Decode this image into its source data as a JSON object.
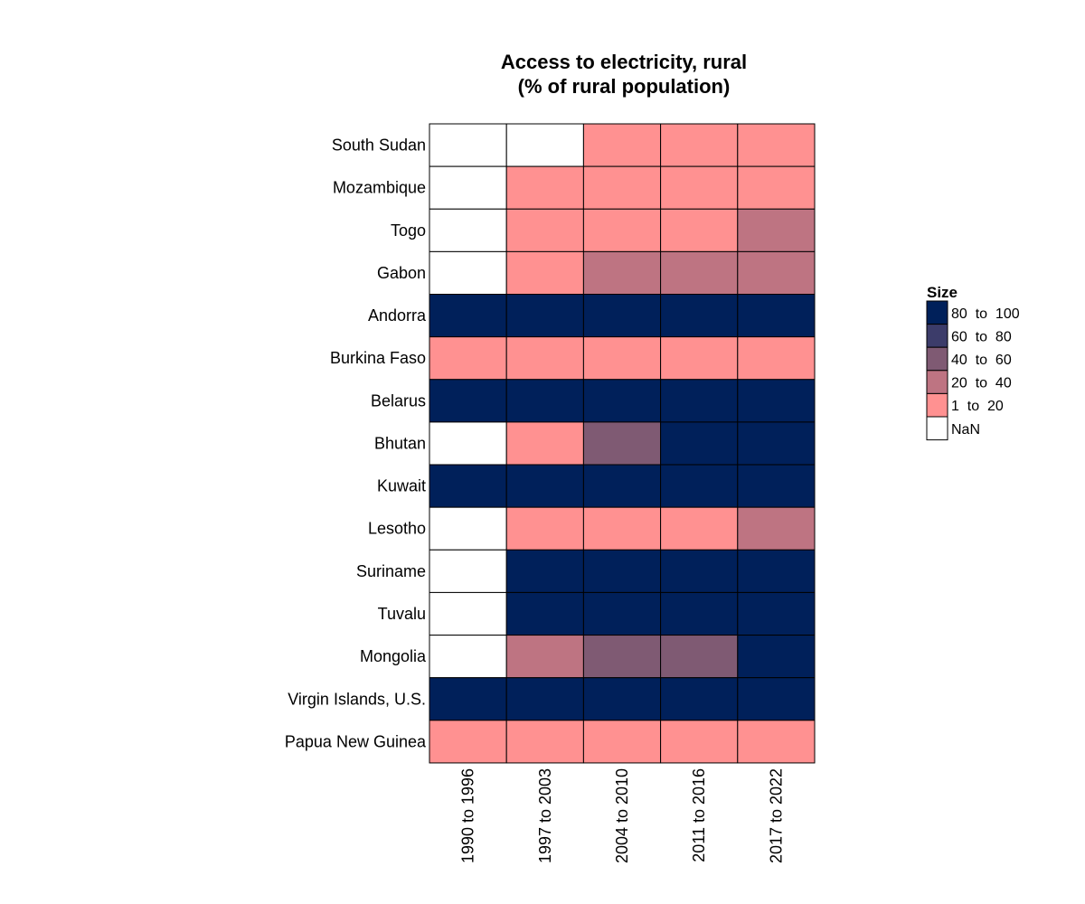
{
  "chart_data": {
    "type": "heatmap",
    "title_lines": [
      "Access to electricity, rural",
      "(% of rural population)"
    ],
    "columns": [
      "1990 to 1996",
      "1997 to 2003",
      "2004 to 2010",
      "2011 to 2016",
      "2017 to 2022"
    ],
    "rows": [
      "South Sudan",
      "Mozambique",
      "Togo",
      "Gabon",
      "Andorra",
      "Burkina Faso",
      "Belarus",
      "Bhutan",
      "Kuwait",
      "Lesotho",
      "Suriname",
      "Tuvalu",
      "Mongolia",
      "Virgin Islands, U.S.",
      "Papua New Guinea"
    ],
    "cells": [
      [
        "NaN",
        "NaN",
        "1 to 20",
        "1 to 20",
        "1 to 20"
      ],
      [
        "NaN",
        "1 to 20",
        "1 to 20",
        "1 to 20",
        "1 to 20"
      ],
      [
        "NaN",
        "1 to 20",
        "1 to 20",
        "1 to 20",
        "20 to 40"
      ],
      [
        "NaN",
        "1 to 20",
        "20 to 40",
        "20 to 40",
        "20 to 40"
      ],
      [
        "80 to 100",
        "80 to 100",
        "80 to 100",
        "80 to 100",
        "80 to 100"
      ],
      [
        "1 to 20",
        "1 to 20",
        "1 to 20",
        "1 to 20",
        "1 to 20"
      ],
      [
        "80 to 100",
        "80 to 100",
        "80 to 100",
        "80 to 100",
        "80 to 100"
      ],
      [
        "NaN",
        "1 to 20",
        "40 to 60",
        "80 to 100",
        "80 to 100"
      ],
      [
        "80 to 100",
        "80 to 100",
        "80 to 100",
        "80 to 100",
        "80 to 100"
      ],
      [
        "NaN",
        "1 to 20",
        "1 to 20",
        "1 to 20",
        "20 to 40"
      ],
      [
        "NaN",
        "80 to 100",
        "80 to 100",
        "80 to 100",
        "80 to 100"
      ],
      [
        "NaN",
        "80 to 100",
        "80 to 100",
        "80 to 100",
        "80 to 100"
      ],
      [
        "NaN",
        "20 to 40",
        "40 to 60",
        "40 to 60",
        "80 to 100"
      ],
      [
        "80 to 100",
        "80 to 100",
        "80 to 100",
        "80 to 100",
        "80 to 100"
      ],
      [
        "1 to 20",
        "1 to 20",
        "1 to 20",
        "1 to 20",
        "1 to 20"
      ]
    ],
    "legend": {
      "title": "Size",
      "placement": "right",
      "items": [
        {
          "label": "80  to  100",
          "key": "80 to 100",
          "color": "#00205a"
        },
        {
          "label": "60  to  80",
          "key": "60 to 80",
          "color": "#3c3c6a"
        },
        {
          "label": "40  to  60",
          "key": "40 to 60",
          "color": "#7f5a73"
        },
        {
          "label": "20  to  40",
          "key": "20 to 40",
          "color": "#be7482"
        },
        {
          "label": "1  to  20",
          "key": "1 to 20",
          "color": "#ff9191"
        },
        {
          "label": "NaN",
          "key": "NaN",
          "color": "#ffffff"
        }
      ]
    }
  }
}
